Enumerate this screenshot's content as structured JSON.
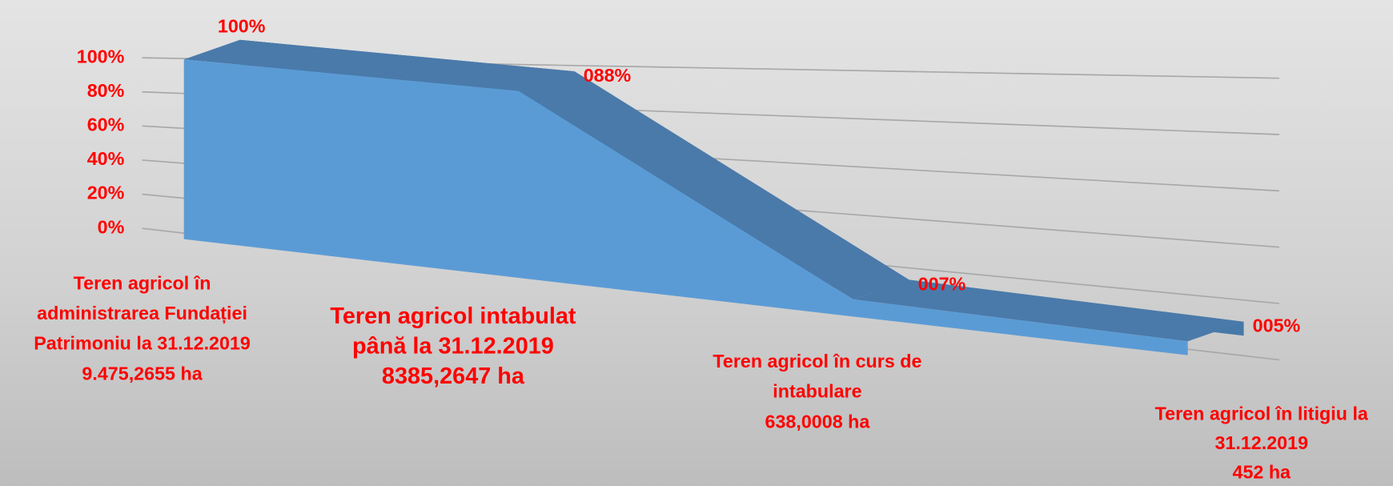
{
  "chart_data": {
    "type": "area",
    "categories": [
      [
        "Teren agricol în",
        "administrarea Fundației",
        "Patrimoniu la 31.12.2019",
        "9.475,2655 ha"
      ],
      [
        "Teren agricol intabulat",
        "până la 31.12.2019",
        "8385,2647  ha"
      ],
      [
        "Teren agricol în curs de",
        "intabulare",
        "638,0008 ha"
      ],
      [
        "Teren agricol în litigiu la",
        "31.12.2019",
        "452 ha"
      ]
    ],
    "series": [
      {
        "color": "#5b9bd5",
        "values": [
          100,
          88,
          7,
          5
        ],
        "value_labels": [
          "100%",
          "088%",
          "007%",
          "005%"
        ]
      }
    ],
    "ylim": [
      0,
      100
    ],
    "yticks": [
      {
        "value": 0,
        "label": "0%"
      },
      {
        "value": 20,
        "label": "20%"
      },
      {
        "value": 40,
        "label": "40%"
      },
      {
        "value": 60,
        "label": "60%"
      },
      {
        "value": 80,
        "label": "80%"
      },
      {
        "value": 100,
        "label": "100%"
      }
    ],
    "grid": true
  }
}
